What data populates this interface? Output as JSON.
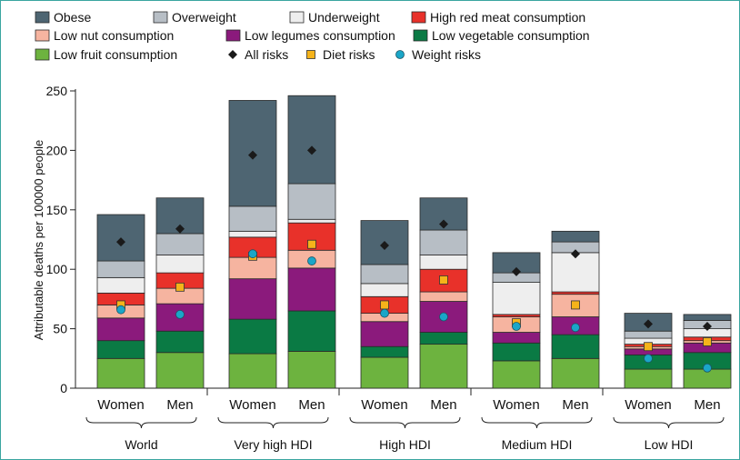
{
  "chart_data": {
    "type": "bar",
    "stacked": true,
    "title": "",
    "xlabel": "",
    "ylabel": "Attributable deaths per 100000 people",
    "ylim": [
      0,
      250
    ],
    "yticks": [
      0,
      50,
      100,
      150,
      200,
      250
    ],
    "grid": false,
    "legend_position": "top",
    "groups": [
      {
        "name": "World",
        "bars": [
          "Women",
          "Men"
        ]
      },
      {
        "name": "Very high HDI",
        "bars": [
          "Women",
          "Men"
        ]
      },
      {
        "name": "High HDI",
        "bars": [
          "Women",
          "Men"
        ]
      },
      {
        "name": "Medium HDI",
        "bars": [
          "Women",
          "Men"
        ]
      },
      {
        "name": "Low HDI",
        "bars": [
          "Women",
          "Men"
        ]
      }
    ],
    "categories": [
      "Women",
      "Men",
      "Women",
      "Men",
      "Women",
      "Men",
      "Women",
      "Men",
      "Women",
      "Men"
    ],
    "series": [
      {
        "name": "Low fruit consumption",
        "color": "#6db33f",
        "values": [
          25,
          30,
          29,
          31,
          26,
          37,
          23,
          25,
          16,
          16
        ]
      },
      {
        "name": "Low vegetable consumption",
        "color": "#0a7a44",
        "values": [
          15,
          18,
          29,
          34,
          9,
          10,
          15,
          20,
          12,
          14
        ]
      },
      {
        "name": "Low legumes consumption",
        "color": "#8b1a7c",
        "values": [
          19,
          23,
          34,
          36,
          21,
          26,
          9,
          15,
          5,
          8
        ]
      },
      {
        "name": "Low nut consumption",
        "color": "#f6b4a0",
        "values": [
          11,
          13,
          18,
          15,
          7,
          8,
          13,
          19,
          2,
          2
        ]
      },
      {
        "name": "High red meat consumption",
        "color": "#e8312a",
        "values": [
          10,
          13,
          17,
          23,
          14,
          19,
          2,
          2,
          2,
          3
        ]
      },
      {
        "name": "Underweight",
        "color": "#eeeeee",
        "values": [
          13,
          15,
          5,
          3,
          11,
          12,
          27,
          33,
          5,
          7
        ]
      },
      {
        "name": "Overweight",
        "color": "#b7bec5",
        "values": [
          14,
          18,
          21,
          30,
          16,
          21,
          8,
          9,
          6,
          7
        ]
      },
      {
        "name": "Obese",
        "color": "#4e6572",
        "values": [
          39,
          30,
          89,
          74,
          37,
          27,
          17,
          9,
          15,
          5
        ]
      }
    ],
    "points": [
      {
        "name": "All risks",
        "marker": "diamond",
        "color": "#1a1a1a",
        "values": [
          123,
          134,
          196,
          200,
          120,
          138,
          98,
          113,
          54,
          52
        ]
      },
      {
        "name": "Diet risks",
        "marker": "square",
        "color": "#f5b31a",
        "values": [
          70,
          85,
          111,
          121,
          70,
          91,
          55,
          70,
          35,
          39
        ]
      },
      {
        "name": "Weight risks",
        "marker": "circle",
        "color": "#1aa6c8",
        "values": [
          66,
          62,
          113,
          107,
          63,
          60,
          52,
          51,
          25,
          17
        ]
      }
    ],
    "legend": [
      {
        "name": "Obese",
        "kind": "box",
        "color": "#4e6572"
      },
      {
        "name": "Overweight",
        "kind": "box",
        "color": "#b7bec5"
      },
      {
        "name": "Underweight",
        "kind": "box",
        "color": "#eeeeee"
      },
      {
        "name": "High red meat consumption",
        "kind": "box",
        "color": "#e8312a"
      },
      {
        "name": "Low nut consumption",
        "kind": "box",
        "color": "#f6b4a0"
      },
      {
        "name": "Low legumes consumption",
        "kind": "box",
        "color": "#8b1a7c"
      },
      {
        "name": "Low vegetable consumption",
        "kind": "box",
        "color": "#0a7a44"
      },
      {
        "name": "Low fruit consumption",
        "kind": "box",
        "color": "#6db33f"
      },
      {
        "name": "All risks",
        "kind": "diamond",
        "color": "#1a1a1a"
      },
      {
        "name": "Diet risks",
        "kind": "square",
        "color": "#f5b31a"
      },
      {
        "name": "Weight risks",
        "kind": "circle",
        "color": "#1aa6c8"
      }
    ]
  }
}
